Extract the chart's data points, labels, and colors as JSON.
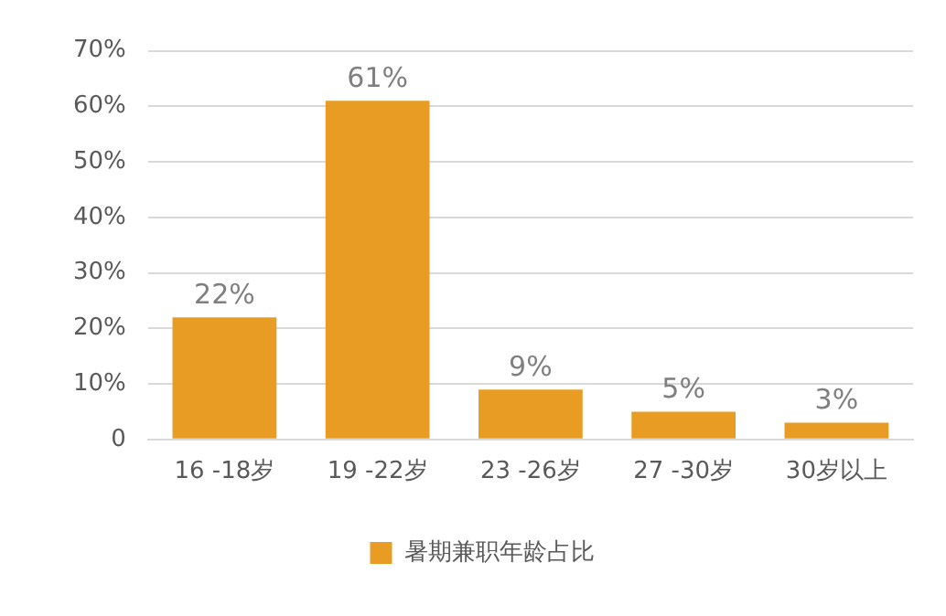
{
  "chart_data": {
    "type": "bar",
    "categories": [
      "16 -18岁",
      "19 -22岁",
      "23 -26岁",
      "27 -30岁",
      "30岁以上"
    ],
    "series": [
      {
        "name": "暑期兼职年龄占比",
        "color": "#e99c24",
        "values": [
          22,
          61,
          9,
          5,
          3
        ],
        "value_labels": [
          "22%",
          "61%",
          "9%",
          "5%",
          "3%"
        ]
      }
    ],
    "ylim": [
      0,
      70
    ],
    "yticks": [
      {
        "value": 0,
        "label": "0"
      },
      {
        "value": 10,
        "label": "10%"
      },
      {
        "value": 20,
        "label": "20%"
      },
      {
        "value": 30,
        "label": "30%"
      },
      {
        "value": 40,
        "label": "40%"
      },
      {
        "value": 50,
        "label": "50%"
      },
      {
        "value": 60,
        "label": "60%"
      },
      {
        "value": 70,
        "label": "70%"
      }
    ],
    "grid": "y",
    "legend": "bottom"
  }
}
